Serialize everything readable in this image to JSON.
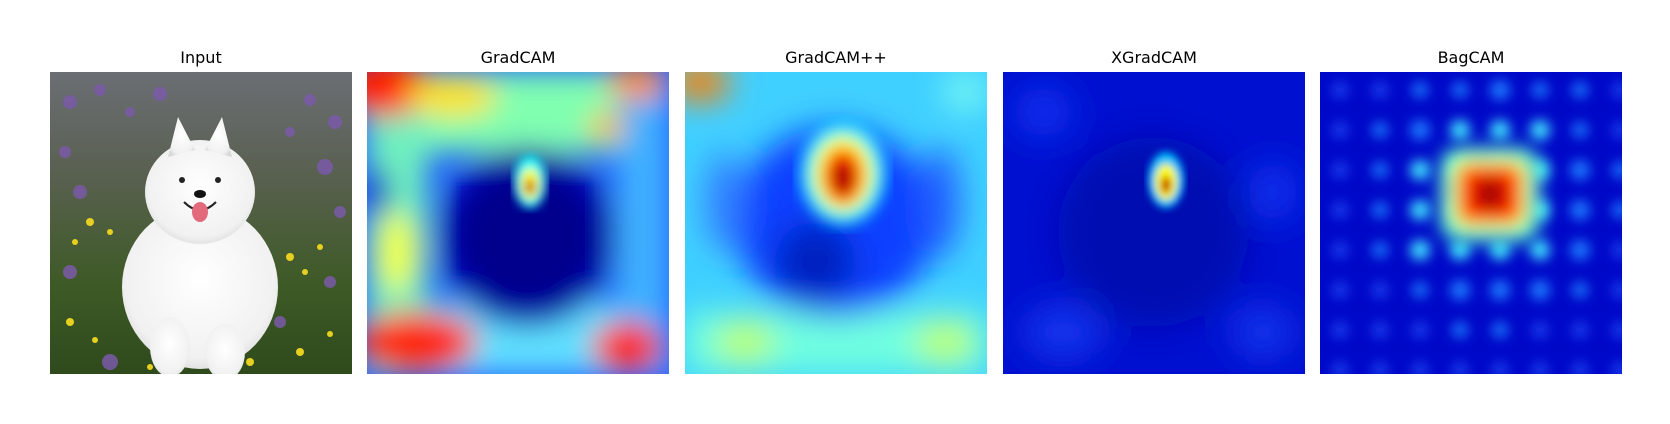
{
  "figure": {
    "panels": [
      {
        "title": "Input",
        "kind": "photo",
        "subject": "white Samoyed dog running in a field of purple and yellow wildflowers"
      },
      {
        "title": "GradCAM",
        "kind": "heatmap",
        "colormap": "jet"
      },
      {
        "title": "GradCAM++",
        "kind": "heatmap",
        "colormap": "jet"
      },
      {
        "title": "XGradCAM",
        "kind": "heatmap",
        "colormap": "jet"
      },
      {
        "title": "BagCAM",
        "kind": "heatmap",
        "colormap": "jet"
      }
    ]
  },
  "colors": {
    "jet_dark_red": "#800000",
    "jet_red": "#ff0000",
    "jet_orange": "#ff8000",
    "jet_yellow": "#ffff00",
    "jet_cyan": "#00ffff",
    "jet_blue": "#0000ff",
    "jet_navy": "#00008f"
  }
}
